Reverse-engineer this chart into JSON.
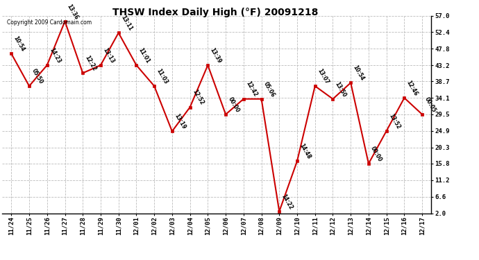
{
  "title": "THSW Index Daily High (°F) 20091218",
  "copyright": "Copyright 2009 Cardomain.com",
  "background_color": "#ffffff",
  "plot_background": "#ffffff",
  "grid_color": "#bbbbbb",
  "line_color": "#cc0000",
  "marker_color": "#cc0000",
  "dates": [
    "11/24",
    "11/25",
    "11/26",
    "11/27",
    "11/28",
    "11/29",
    "11/30",
    "12/01",
    "12/02",
    "12/03",
    "12/04",
    "12/05",
    "12/06",
    "12/07",
    "12/08",
    "12/09",
    "12/10",
    "12/11",
    "12/12",
    "12/13",
    "12/14",
    "12/15",
    "12/16",
    "12/17"
  ],
  "values": [
    46.4,
    37.4,
    43.2,
    55.4,
    41.0,
    43.2,
    52.2,
    43.2,
    37.4,
    24.8,
    31.5,
    43.2,
    29.5,
    33.8,
    33.8,
    2.5,
    16.5,
    37.4,
    33.8,
    38.3,
    15.8,
    24.9,
    34.1,
    29.5
  ],
  "labels": [
    "10:54",
    "05:50",
    "14:23",
    "13:36",
    "12:22",
    "13:13",
    "13:11",
    "11:01",
    "11:03",
    "13:19",
    "12:52",
    "13:39",
    "00:00",
    "12:42",
    "05:06",
    "14:22",
    "14:48",
    "13:07",
    "13:50",
    "10:54",
    "00:00",
    "13:52",
    "12:46",
    "00:05"
  ],
  "yticks": [
    2.0,
    6.6,
    11.2,
    15.8,
    20.3,
    24.9,
    29.5,
    34.1,
    38.7,
    43.2,
    47.8,
    52.4,
    57.0
  ],
  "ylim": [
    2.0,
    57.0
  ]
}
